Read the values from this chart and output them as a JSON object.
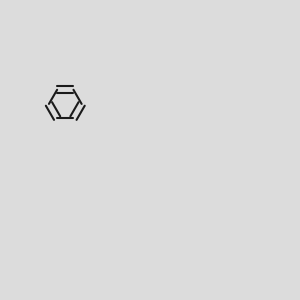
{
  "bg_color": "#dcdcdc",
  "bond_color": "#1a1a1a",
  "N_color": "#2020ee",
  "O_color": "#ee2020",
  "F_color": "#ee00ee",
  "H_color": "#007777",
  "line_width": 1.5,
  "font_size": 8.5
}
